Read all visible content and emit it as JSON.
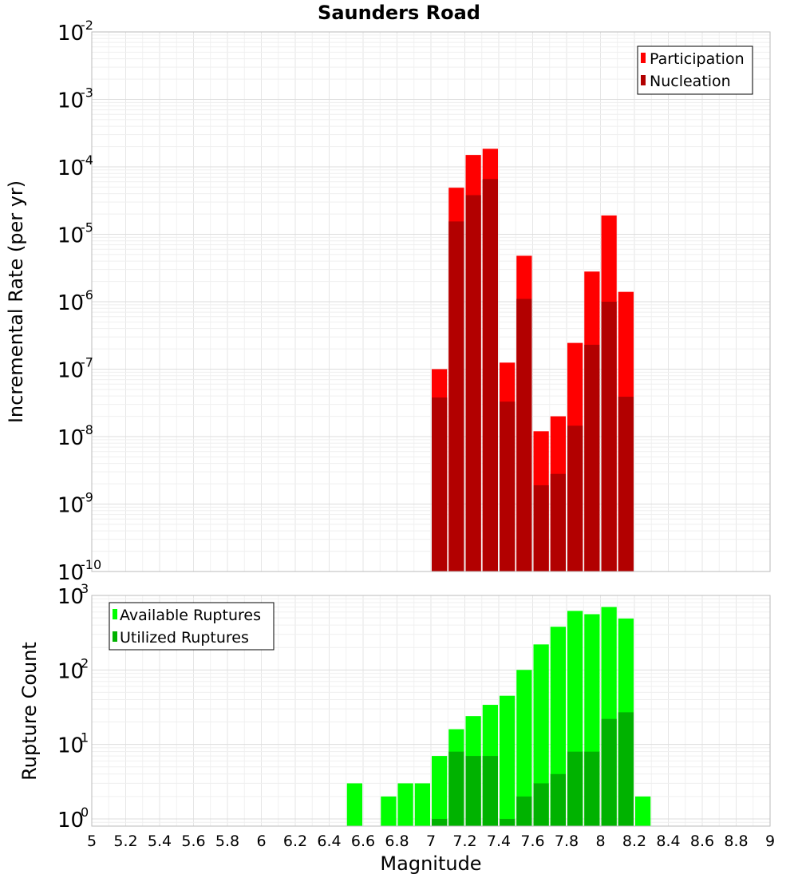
{
  "chart_data": [
    {
      "type": "bar",
      "title": "Saunders Road",
      "ylabel": "Incremental Rate (per yr)",
      "xlabel": "",
      "xlim": [
        5,
        9
      ],
      "ylim": [
        1e-10,
        0.01
      ],
      "yscale": "log",
      "grid": true,
      "legend_position": "top-right",
      "ytick_base": "10",
      "ytick_exponents": [
        "-10",
        "-9",
        "-8",
        "-7",
        "-6",
        "-5",
        "-4",
        "-3",
        "-2"
      ],
      "bin_width": 0.1,
      "x": [
        7.05,
        7.15,
        7.25,
        7.35,
        7.45,
        7.55,
        7.65,
        7.75,
        7.85,
        7.95,
        8.05,
        8.15
      ],
      "series": [
        {
          "name": "Participation",
          "color": "#ff0000",
          "values": [
            1e-07,
            4.9e-05,
            0.00015,
            0.000185,
            1.25e-07,
            4.8e-06,
            1.2e-08,
            2e-08,
            2.45e-07,
            2.8e-06,
            1.9e-05,
            1.4e-06
          ]
        },
        {
          "name": "Nucleation",
          "color": "#b20000",
          "values": [
            3.8e-08,
            1.55e-05,
            3.8e-05,
            6.6e-05,
            3.3e-08,
            1.1e-06,
            1.9e-09,
            2.8e-09,
            1.45e-08,
            2.3e-07,
            1e-06,
            3.9e-08
          ]
        }
      ]
    },
    {
      "type": "bar",
      "title": "",
      "ylabel": "Rupture Count",
      "xlabel": "Magnitude",
      "xlim": [
        5,
        9
      ],
      "ylim": [
        0.8,
        1000
      ],
      "yscale": "log",
      "grid": true,
      "legend_position": "top-left",
      "ytick_base": "10",
      "ytick_exponents": [
        "0",
        "1",
        "2",
        "3"
      ],
      "xticks": [
        "5",
        "5.2",
        "5.4",
        "5.6",
        "5.8",
        "6",
        "6.2",
        "6.4",
        "6.6",
        "6.8",
        "7",
        "7.2",
        "7.4",
        "7.6",
        "7.8",
        "8",
        "8.2",
        "8.4",
        "8.6",
        "8.8",
        "9"
      ],
      "bin_width": 0.1,
      "x": [
        6.55,
        6.75,
        6.85,
        6.95,
        7.05,
        7.15,
        7.25,
        7.35,
        7.45,
        7.55,
        7.65,
        7.75,
        7.85,
        7.95,
        8.05,
        8.15,
        8.25
      ],
      "series": [
        {
          "name": "Available Ruptures",
          "color": "#00ff00",
          "values": [
            3,
            2,
            3,
            3,
            7,
            16,
            24,
            34,
            45,
            100,
            220,
            380,
            620,
            560,
            700,
            490,
            2
          ]
        },
        {
          "name": "Utilized Ruptures",
          "color": "#00b200",
          "values": [
            null,
            null,
            null,
            null,
            1,
            8,
            7,
            7,
            1,
            2,
            3,
            4,
            8,
            8,
            22,
            27,
            null
          ]
        }
      ]
    }
  ]
}
